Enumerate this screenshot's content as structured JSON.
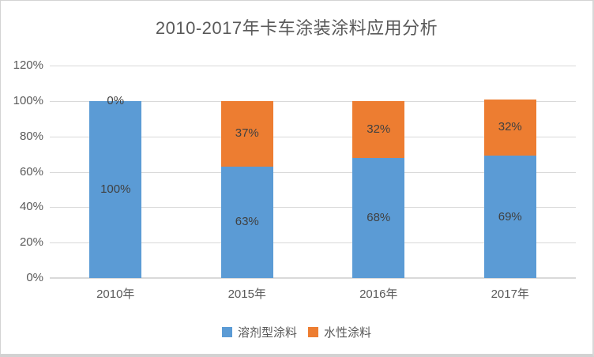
{
  "title": "2010-2017年卡车涂装涂料应用分析",
  "colors": {
    "series_blue": "#5B9BD5",
    "series_orange": "#ED7D31",
    "gridline": "#D9D9D9",
    "axis_text": "#595959",
    "data_label": "#404040",
    "title_text": "#595959",
    "background": "#FFFFFF",
    "frame_border": "#D3D3D3"
  },
  "chart_data": {
    "type": "bar",
    "stacked": true,
    "title": "2010-2017年卡车涂装涂料应用分析",
    "categories": [
      "2010年",
      "2015年",
      "2016年",
      "2017年"
    ],
    "series": [
      {
        "name": "溶剂型涂料",
        "color": "#5B9BD5",
        "values": [
          100,
          63,
          68,
          69
        ],
        "labels": [
          "100%",
          "63%",
          "68%",
          "69%"
        ]
      },
      {
        "name": "水性涂料",
        "color": "#ED7D31",
        "values": [
          0,
          37,
          32,
          32
        ],
        "labels": [
          "0%",
          "37%",
          "32%",
          "32%"
        ]
      }
    ],
    "xlabel": "",
    "ylabel": "",
    "ylim": [
      0,
      120
    ],
    "ytick_interval": 20,
    "yticks": [
      "0%",
      "20%",
      "40%",
      "60%",
      "80%",
      "100%",
      "120%"
    ],
    "grid": true,
    "legend_position": "bottom"
  }
}
